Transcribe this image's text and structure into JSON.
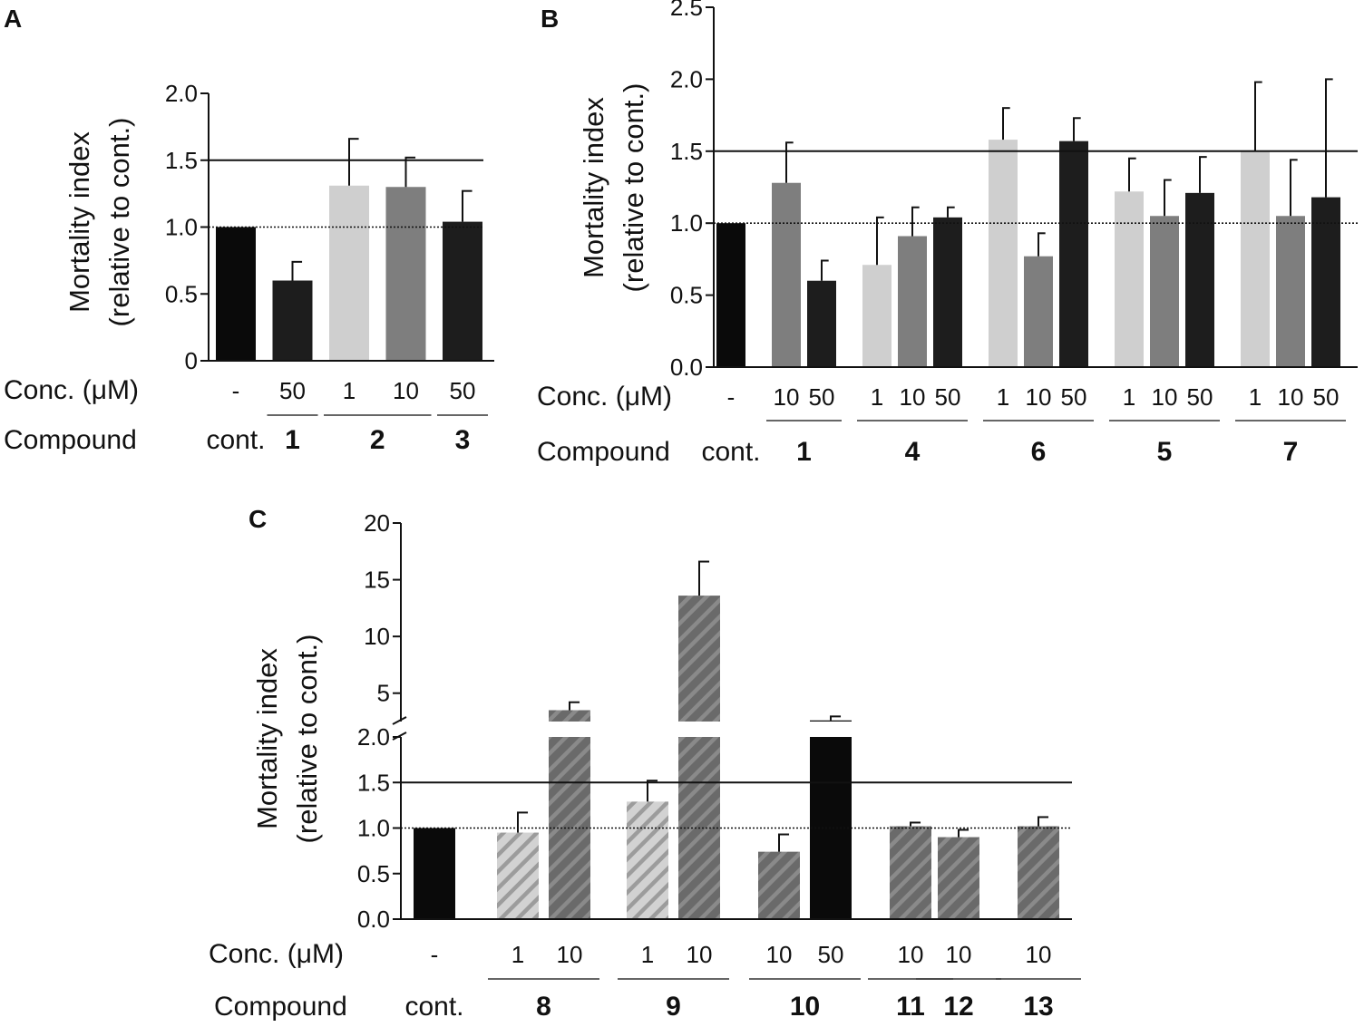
{
  "colors": {
    "black": "#0a0a0a",
    "dark": "#1d1d1d",
    "mid": "#7e7e7e",
    "light": "#cfcfcf",
    "hatch_dark": "#6a6a6a",
    "hatch_light": "#cfcfcf"
  },
  "chart_data": [
    {
      "type": "bar",
      "panel": "A",
      "ylabel_lines": [
        "Mortality index",
        "(relative to cont.)"
      ],
      "ylim": [
        0,
        2.0
      ],
      "yticks": [
        "0",
        "0.5",
        "1.0",
        "1.5",
        "2.0"
      ],
      "threshold": 1.5,
      "baseline": 1.0,
      "row_labels": {
        "conc": "Conc. (μM)",
        "compound": "Compound"
      },
      "bars": [
        {
          "conc": "-",
          "value": 1.0,
          "err": 0,
          "color": "black"
        },
        {
          "conc": "50",
          "value": 0.6,
          "err": 0.14,
          "color": "dark"
        },
        {
          "conc": "1",
          "value": 1.31,
          "err": 0.35,
          "color": "light"
        },
        {
          "conc": "10",
          "value": 1.3,
          "err": 0.22,
          "color": "mid"
        },
        {
          "conc": "50",
          "value": 1.04,
          "err": 0.23,
          "color": "dark"
        }
      ],
      "compounds": [
        {
          "label": "cont.",
          "bold": false,
          "bars": [
            0
          ]
        },
        {
          "label": "1",
          "bold": true,
          "bars": [
            1
          ]
        },
        {
          "label": "2",
          "bold": true,
          "bars": [
            2,
            3
          ]
        },
        {
          "label": "3",
          "bold": true,
          "bars": [
            4
          ]
        }
      ]
    },
    {
      "type": "bar",
      "panel": "B",
      "ylabel_lines": [
        "Mortality index",
        "(relative to cont.)"
      ],
      "ylim": [
        0,
        2.5
      ],
      "yticks": [
        "0.0",
        "0.5",
        "1.0",
        "1.5",
        "2.0",
        "2.5"
      ],
      "threshold": 1.5,
      "baseline": 1.0,
      "row_labels": {
        "conc": "Conc. (μM)",
        "compound": "Compound"
      },
      "bars": [
        {
          "conc": "-",
          "value": 1.0,
          "err": 0,
          "color": "black"
        },
        {
          "conc": "10",
          "value": 1.28,
          "err": 0.28,
          "color": "mid"
        },
        {
          "conc": "50",
          "value": 0.6,
          "err": 0.14,
          "color": "dark"
        },
        {
          "conc": "1",
          "value": 0.71,
          "err": 0.33,
          "color": "light"
        },
        {
          "conc": "10",
          "value": 0.91,
          "err": 0.2,
          "color": "mid"
        },
        {
          "conc": "50",
          "value": 1.04,
          "err": 0.07,
          "color": "dark"
        },
        {
          "conc": "1",
          "value": 1.58,
          "err": 0.22,
          "color": "light"
        },
        {
          "conc": "10",
          "value": 0.77,
          "err": 0.16,
          "color": "mid"
        },
        {
          "conc": "50",
          "value": 1.57,
          "err": 0.16,
          "color": "dark"
        },
        {
          "conc": "1",
          "value": 1.22,
          "err": 0.23,
          "color": "light"
        },
        {
          "conc": "10",
          "value": 1.05,
          "err": 0.25,
          "color": "mid"
        },
        {
          "conc": "50",
          "value": 1.21,
          "err": 0.25,
          "color": "dark"
        },
        {
          "conc": "1",
          "value": 1.5,
          "err": 0.48,
          "color": "light"
        },
        {
          "conc": "10",
          "value": 1.05,
          "err": 0.39,
          "color": "mid"
        },
        {
          "conc": "50",
          "value": 1.18,
          "err": 0.82,
          "color": "dark"
        }
      ],
      "compounds": [
        {
          "label": "cont.",
          "bold": false,
          "bars": [
            0
          ]
        },
        {
          "label": "1",
          "bold": true,
          "bars": [
            1,
            2
          ]
        },
        {
          "label": "4",
          "bold": true,
          "bars": [
            3,
            4,
            5
          ]
        },
        {
          "label": "6",
          "bold": true,
          "bars": [
            6,
            7,
            8
          ]
        },
        {
          "label": "5",
          "bold": true,
          "bars": [
            9,
            10,
            11
          ]
        },
        {
          "label": "7",
          "bold": true,
          "bars": [
            12,
            13,
            14
          ]
        }
      ]
    },
    {
      "type": "bar",
      "panel": "C",
      "ylabel_lines": [
        "Mortality index",
        "(relative to cont.)"
      ],
      "ylim_lower": [
        0,
        2.0
      ],
      "ylim_upper": [
        2.5,
        20
      ],
      "yticks_lower": [
        "0.0",
        "0.5",
        "1.0",
        "1.5",
        "2.0"
      ],
      "yticks_upper": [
        "5",
        "10",
        "15",
        "20"
      ],
      "threshold": 1.5,
      "baseline": 1.0,
      "row_labels": {
        "conc": "Conc. (μM)",
        "compound": "Compound"
      },
      "bars": [
        {
          "conc": "-",
          "value": 1.0,
          "err": 0,
          "color": "black"
        },
        {
          "conc": "1",
          "value": 0.95,
          "err": 0.22,
          "color": "hatch_light"
        },
        {
          "conc": "10",
          "value": 3.5,
          "err": 0.7,
          "color": "hatch_dark"
        },
        {
          "conc": "1",
          "value": 1.29,
          "err": 0.23,
          "color": "hatch_light"
        },
        {
          "conc": "10",
          "value": 13.6,
          "err": 3.0,
          "color": "hatch_dark"
        },
        {
          "conc": "10",
          "value": 0.74,
          "err": 0.19,
          "color": "hatch_dark"
        },
        {
          "conc": "50",
          "value": 2.6,
          "err": 0.35,
          "color": "black"
        },
        {
          "conc": "10",
          "value": 1.02,
          "err": 0.04,
          "color": "hatch_dark"
        },
        {
          "conc": "10",
          "value": 0.9,
          "err": 0.08,
          "color": "hatch_dark"
        },
        {
          "conc": "10",
          "value": 1.02,
          "err": 0.1,
          "color": "hatch_dark"
        }
      ],
      "compounds": [
        {
          "label": "cont.",
          "bold": false,
          "bars": [
            0
          ]
        },
        {
          "label": "8",
          "bold": true,
          "bars": [
            1,
            2
          ]
        },
        {
          "label": "9",
          "bold": true,
          "bars": [
            3,
            4
          ]
        },
        {
          "label": "10",
          "bold": true,
          "bars": [
            5,
            6
          ]
        },
        {
          "label": "11",
          "bold": true,
          "bars": [
            7
          ]
        },
        {
          "label": "12",
          "bold": true,
          "bars": [
            8
          ]
        },
        {
          "label": "13",
          "bold": true,
          "bars": [
            9
          ]
        }
      ]
    }
  ]
}
